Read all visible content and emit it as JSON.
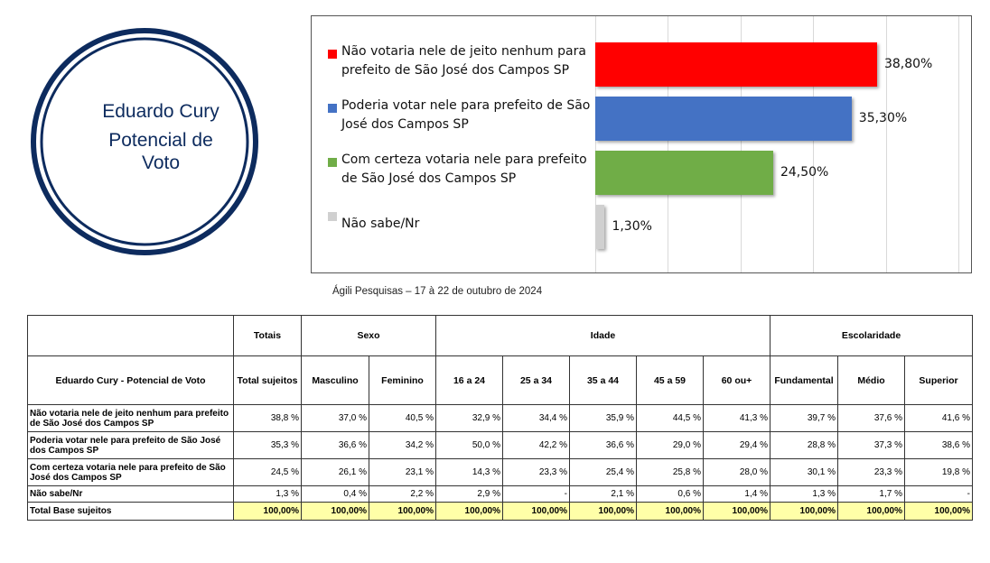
{
  "logo": {
    "lines": [
      "Eduardo Cury",
      "Potencial de",
      "Voto"
    ]
  },
  "chart_data": {
    "type": "hbar",
    "categories": [
      "Não votaria nele de jeito nenhum para prefeito de São José dos Campos SP",
      "Poderia votar nele para prefeito de São José dos Campos SP",
      "Com certeza votaria nele para prefeito de São José dos Campos SP",
      "Não sabe/Nr"
    ],
    "values": [
      38.8,
      35.3,
      24.5,
      1.3
    ],
    "value_labels": [
      "38,80%",
      "35,30%",
      "24,50%",
      "1,30%"
    ],
    "colors": [
      "#ff0000",
      "#4472c4",
      "#70ad47",
      "#d0d0d0"
    ],
    "xlim": [
      0,
      50
    ],
    "xticks": [
      0,
      10,
      20,
      30,
      40,
      50
    ],
    "grid": true
  },
  "source": "Ágili Pesquisas – 17 à 22 de outubro de 2024",
  "table": {
    "groups": [
      "Totais",
      "Sexo",
      "Idade",
      "Escolaridade"
    ],
    "columns": [
      "Eduardo Cury - Potencial de Voto",
      "Total sujeitos",
      "Masculino",
      "Feminino",
      "16 a 24",
      "25 a 34",
      "35 a 44",
      "45 a 59",
      "60 ou+",
      "Fundamental",
      "Médio",
      "Superior"
    ],
    "rows": [
      [
        "Não votaria nele de jeito nenhum para prefeito de São José dos Campos SP",
        "38,8 %",
        "37,0 %",
        "40,5 %",
        "32,9 %",
        "34,4 %",
        "35,9 %",
        "44,5 %",
        "41,3 %",
        "39,7 %",
        "37,6 %",
        "41,6 %"
      ],
      [
        "Poderia votar nele para prefeito de São José dos Campos SP",
        "35,3 %",
        "36,6 %",
        "34,2 %",
        "50,0 %",
        "42,2 %",
        "36,6 %",
        "29,0 %",
        "29,4 %",
        "28,8 %",
        "37,3 %",
        "38,6 %"
      ],
      [
        "Com certeza votaria nele para prefeito de São José dos Campos SP",
        "24,5 %",
        "26,1 %",
        "23,1 %",
        "14,3 %",
        "23,3 %",
        "25,4 %",
        "25,8 %",
        "28,0 %",
        "30,1 %",
        "23,3 %",
        "19,8 %"
      ],
      [
        "Não sabe/Nr",
        "1,3 %",
        "0,4 %",
        "2,2 %",
        "2,9 %",
        "-",
        "2,1 %",
        "0,6 %",
        "1,4 %",
        "1,3 %",
        "1,7 %",
        "-"
      ],
      [
        "Total Base sujeitos",
        "100,00%",
        "100,00%",
        "100,00%",
        "100,00%",
        "100,00%",
        "100,00%",
        "100,00%",
        "100,00%",
        "100,00%",
        "100,00%",
        "100,00%"
      ]
    ]
  }
}
